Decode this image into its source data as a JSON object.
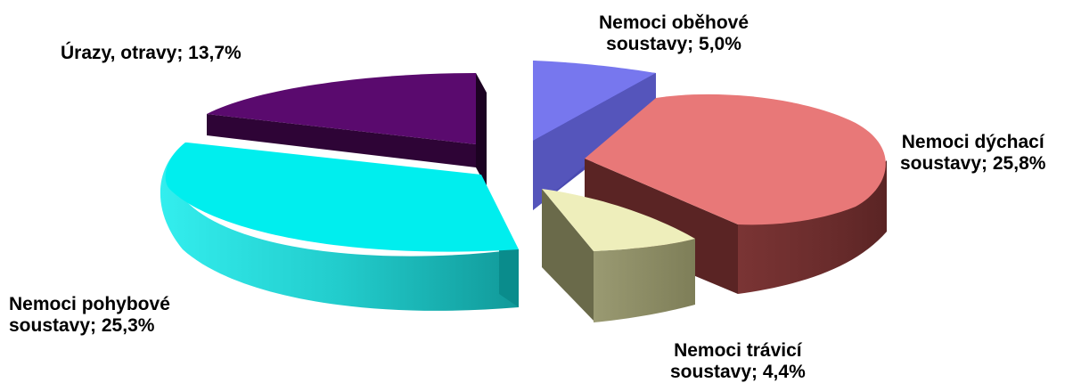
{
  "chart_data": {
    "type": "pie",
    "style": "3d-exploded",
    "slices": [
      {
        "label_line1": "Nemoci oběhové",
        "label_line2": "soustavy; 5,0%",
        "value": 5.0,
        "color": "#7777ee"
      },
      {
        "label_line1": "Nemoci dýchací",
        "label_line2": "soustavy; 25,8%",
        "value": 25.8,
        "color": "#e87878"
      },
      {
        "label_line1": "Nemoci trávicí",
        "label_line2": "soustavy; 4,4%",
        "value": 4.4,
        "color": "#eeeebb"
      },
      {
        "label_line1": "Nemoci pohybové",
        "label_line2": "soustavy; 25,3%",
        "value": 25.3,
        "color": "#00eeee"
      },
      {
        "label_line1": "Úrazy, otravy; 13,7%",
        "label_line2": "",
        "value": 13.7,
        "color": "#5a0a6e"
      }
    ]
  }
}
